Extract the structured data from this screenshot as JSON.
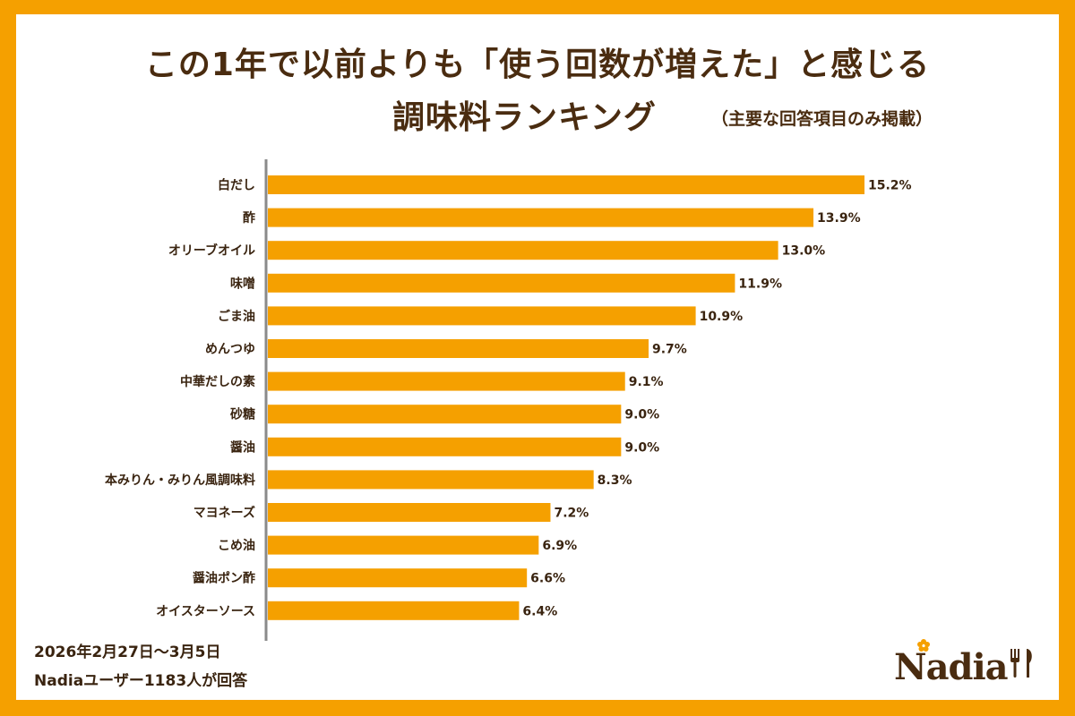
{
  "title_line1": "この1年で以前よりも「使う回数が増えた」と感じる",
  "title_line2": "調味料ランキング",
  "subtitle": "（主要な回答項目のみ掲載）",
  "footnote": {
    "date": "2026年2月27日～3月5日",
    "respondents": "Nadiaユーザー1183人が回答"
  },
  "logo": {
    "text": "Nadia",
    "icon": "fork-and-knife-icon"
  },
  "colors": {
    "border": "#f5a000",
    "bar": "#f5a000",
    "text": "#4a2c10"
  },
  "chart_data": {
    "type": "bar",
    "orientation": "horizontal",
    "categories": [
      "白だし",
      "酢",
      "オリーブオイル",
      "味噌",
      "ごま油",
      "めんつゆ",
      "中華だしの素",
      "砂糖",
      "醤油",
      "本みりん・みりん風調味料",
      "マヨネーズ",
      "こめ油",
      "醤油ポン酢",
      "オイスターソース"
    ],
    "values": [
      15.2,
      13.9,
      13.0,
      11.9,
      10.9,
      9.7,
      9.1,
      9.0,
      9.0,
      8.3,
      7.2,
      6.9,
      6.6,
      6.4
    ],
    "value_labels": [
      "15.2%",
      "13.9%",
      "13.0%",
      "11.9%",
      "10.9%",
      "9.7%",
      "9.1%",
      "9.0%",
      "9.0%",
      "8.3%",
      "7.2%",
      "6.9%",
      "6.6%",
      "6.4%"
    ],
    "unit": "%",
    "xlim": [
      0,
      15.2
    ],
    "grid": false,
    "legend": "none"
  }
}
